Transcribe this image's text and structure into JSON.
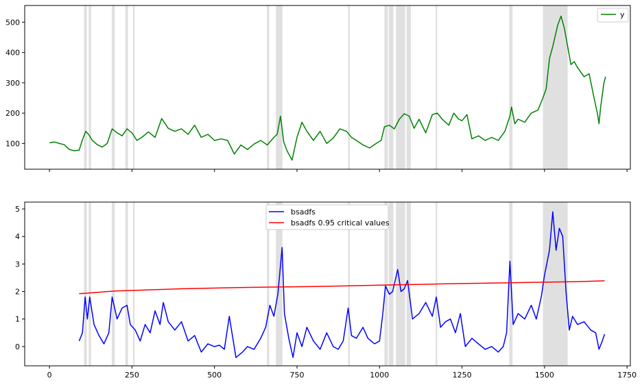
{
  "chart_data": [
    {
      "type": "line",
      "title": "",
      "xlabel": "",
      "ylabel": "",
      "xlim": [
        -75,
        1760
      ],
      "ylim": [
        15,
        555
      ],
      "x_ticks": [
        0,
        250,
        500,
        750,
        1000,
        1250,
        1500,
        1750
      ],
      "y_ticks": [
        100,
        200,
        300,
        400,
        500
      ],
      "show_x_tick_labels": false,
      "grid": false,
      "legend_position": "upper right",
      "shaded_regions": [
        [
          105,
          113
        ],
        [
          119,
          126
        ],
        [
          189,
          198
        ],
        [
          230,
          238
        ],
        [
          253,
          258
        ],
        [
          659,
          666
        ],
        [
          686,
          706
        ],
        [
          905,
          910
        ],
        [
          1015,
          1025
        ],
        [
          1028,
          1042
        ],
        [
          1050,
          1078
        ],
        [
          1082,
          1095
        ],
        [
          1170,
          1175
        ],
        [
          1393,
          1403
        ],
        [
          1495,
          1570
        ]
      ],
      "shade_color": "#e0e0e0",
      "series": [
        {
          "name": "y",
          "color": "#008000",
          "points": [
            [
              0,
              102
            ],
            [
              15,
              105
            ],
            [
              30,
              100
            ],
            [
              45,
              96
            ],
            [
              60,
              80
            ],
            [
              75,
              76
            ],
            [
              90,
              78
            ],
            [
              100,
              112
            ],
            [
              110,
              140
            ],
            [
              120,
              128
            ],
            [
              130,
              110
            ],
            [
              145,
              96
            ],
            [
              160,
              88
            ],
            [
              175,
              100
            ],
            [
              190,
              148
            ],
            [
              205,
              135
            ],
            [
              220,
              125
            ],
            [
              235,
              148
            ],
            [
              250,
              135
            ],
            [
              265,
              110
            ],
            [
              280,
              120
            ],
            [
              300,
              138
            ],
            [
              320,
              120
            ],
            [
              340,
              182
            ],
            [
              360,
              150
            ],
            [
              380,
              140
            ],
            [
              400,
              148
            ],
            [
              420,
              130
            ],
            [
              440,
              160
            ],
            [
              460,
              120
            ],
            [
              480,
              130
            ],
            [
              500,
              110
            ],
            [
              520,
              115
            ],
            [
              540,
              110
            ],
            [
              560,
              65
            ],
            [
              580,
              95
            ],
            [
              600,
              80
            ],
            [
              620,
              98
            ],
            [
              640,
              110
            ],
            [
              660,
              95
            ],
            [
              680,
              120
            ],
            [
              690,
              130
            ],
            [
              700,
              190
            ],
            [
              710,
              105
            ],
            [
              720,
              75
            ],
            [
              735,
              45
            ],
            [
              750,
              120
            ],
            [
              765,
              170
            ],
            [
              780,
              140
            ],
            [
              800,
              110
            ],
            [
              820,
              140
            ],
            [
              840,
              100
            ],
            [
              860,
              118
            ],
            [
              880,
              148
            ],
            [
              900,
              140
            ],
            [
              915,
              120
            ],
            [
              930,
              110
            ],
            [
              950,
              95
            ],
            [
              970,
              85
            ],
            [
              990,
              100
            ],
            [
              1005,
              110
            ],
            [
              1015,
              155
            ],
            [
              1030,
              160
            ],
            [
              1045,
              148
            ],
            [
              1060,
              180
            ],
            [
              1075,
              198
            ],
            [
              1090,
              190
            ],
            [
              1105,
              150
            ],
            [
              1120,
              180
            ],
            [
              1140,
              135
            ],
            [
              1160,
              195
            ],
            [
              1175,
              200
            ],
            [
              1190,
              180
            ],
            [
              1210,
              160
            ],
            [
              1225,
              200
            ],
            [
              1240,
              180
            ],
            [
              1250,
              175
            ],
            [
              1265,
              195
            ],
            [
              1280,
              115
            ],
            [
              1300,
              125
            ],
            [
              1320,
              110
            ],
            [
              1340,
              120
            ],
            [
              1360,
              110
            ],
            [
              1380,
              140
            ],
            [
              1395,
              190
            ],
            [
              1400,
              220
            ],
            [
              1410,
              165
            ],
            [
              1420,
              180
            ],
            [
              1440,
              170
            ],
            [
              1460,
              200
            ],
            [
              1480,
              210
            ],
            [
              1495,
              250
            ],
            [
              1505,
              280
            ],
            [
              1515,
              380
            ],
            [
              1525,
              420
            ],
            [
              1540,
              490
            ],
            [
              1550,
              520
            ],
            [
              1560,
              480
            ],
            [
              1570,
              420
            ],
            [
              1580,
              360
            ],
            [
              1590,
              370
            ],
            [
              1600,
              350
            ],
            [
              1620,
              320
            ],
            [
              1635,
              330
            ],
            [
              1650,
              250
            ],
            [
              1660,
              200
            ],
            [
              1665,
              165
            ],
            [
              1670,
              220
            ],
            [
              1680,
              300
            ],
            [
              1685,
              320
            ]
          ]
        }
      ]
    },
    {
      "type": "line",
      "title": "",
      "xlabel": "",
      "ylabel": "",
      "xlim": [
        -75,
        1760
      ],
      "ylim": [
        -0.7,
        5.25
      ],
      "x_ticks": [
        0,
        250,
        500,
        750,
        1000,
        1250,
        1500,
        1750
      ],
      "y_ticks": [
        0,
        1,
        2,
        3,
        4,
        5
      ],
      "show_x_tick_labels": true,
      "grid": false,
      "legend_position": "upper center",
      "shaded_regions": [
        [
          105,
          113
        ],
        [
          119,
          126
        ],
        [
          189,
          198
        ],
        [
          230,
          238
        ],
        [
          253,
          258
        ],
        [
          659,
          666
        ],
        [
          686,
          706
        ],
        [
          905,
          910
        ],
        [
          1015,
          1025
        ],
        [
          1028,
          1042
        ],
        [
          1050,
          1078
        ],
        [
          1082,
          1095
        ],
        [
          1170,
          1175
        ],
        [
          1393,
          1403
        ],
        [
          1495,
          1570
        ]
      ],
      "shade_color": "#e0e0e0",
      "series": [
        {
          "name": "bsadfs",
          "color": "#0000ff",
          "points": [
            [
              90,
              0.2
            ],
            [
              100,
              0.5
            ],
            [
              108,
              1.8
            ],
            [
              115,
              1.0
            ],
            [
              122,
              1.8
            ],
            [
              135,
              0.8
            ],
            [
              150,
              0.4
            ],
            [
              165,
              0.1
            ],
            [
              180,
              0.5
            ],
            [
              190,
              1.8
            ],
            [
              205,
              1.0
            ],
            [
              220,
              1.4
            ],
            [
              235,
              1.5
            ],
            [
              245,
              0.8
            ],
            [
              260,
              0.6
            ],
            [
              275,
              0.2
            ],
            [
              290,
              0.8
            ],
            [
              305,
              0.5
            ],
            [
              320,
              1.3
            ],
            [
              335,
              0.8
            ],
            [
              345,
              1.6
            ],
            [
              360,
              0.9
            ],
            [
              380,
              0.6
            ],
            [
              400,
              0.9
            ],
            [
              420,
              0.2
            ],
            [
              440,
              0.4
            ],
            [
              460,
              -0.2
            ],
            [
              480,
              0.1
            ],
            [
              500,
              0.0
            ],
            [
              515,
              0.05
            ],
            [
              530,
              -0.1
            ],
            [
              545,
              1.1
            ],
            [
              565,
              -0.4
            ],
            [
              585,
              -0.2
            ],
            [
              600,
              0.0
            ],
            [
              620,
              -0.1
            ],
            [
              640,
              0.3
            ],
            [
              655,
              0.7
            ],
            [
              668,
              1.5
            ],
            [
              680,
              1.1
            ],
            [
              692,
              1.9
            ],
            [
              705,
              3.6
            ],
            [
              712,
              1.2
            ],
            [
              725,
              0.3
            ],
            [
              738,
              -0.4
            ],
            [
              750,
              0.5
            ],
            [
              765,
              0.0
            ],
            [
              780,
              0.7
            ],
            [
              800,
              0.2
            ],
            [
              820,
              -0.1
            ],
            [
              840,
              0.5
            ],
            [
              860,
              0.0
            ],
            [
              875,
              -0.1
            ],
            [
              890,
              0.2
            ],
            [
              905,
              1.4
            ],
            [
              915,
              0.4
            ],
            [
              930,
              0.3
            ],
            [
              950,
              0.7
            ],
            [
              965,
              0.3
            ],
            [
              985,
              0.1
            ],
            [
              1000,
              0.2
            ],
            [
              1010,
              1.2
            ],
            [
              1018,
              2.2
            ],
            [
              1030,
              1.9
            ],
            [
              1040,
              2.0
            ],
            [
              1055,
              2.8
            ],
            [
              1065,
              2.0
            ],
            [
              1075,
              2.1
            ],
            [
              1085,
              2.4
            ],
            [
              1100,
              1.0
            ],
            [
              1120,
              1.2
            ],
            [
              1140,
              1.6
            ],
            [
              1160,
              1.1
            ],
            [
              1172,
              1.8
            ],
            [
              1185,
              0.7
            ],
            [
              1200,
              0.9
            ],
            [
              1215,
              1.0
            ],
            [
              1230,
              0.5
            ],
            [
              1245,
              1.2
            ],
            [
              1260,
              0.0
            ],
            [
              1280,
              0.3
            ],
            [
              1300,
              0.1
            ],
            [
              1320,
              -0.1
            ],
            [
              1340,
              0.0
            ],
            [
              1360,
              -0.2
            ],
            [
              1375,
              0.0
            ],
            [
              1385,
              0.5
            ],
            [
              1395,
              3.1
            ],
            [
              1405,
              0.8
            ],
            [
              1420,
              1.2
            ],
            [
              1440,
              1.0
            ],
            [
              1460,
              1.5
            ],
            [
              1475,
              1.0
            ],
            [
              1490,
              1.8
            ],
            [
              1500,
              2.6
            ],
            [
              1515,
              3.5
            ],
            [
              1525,
              4.9
            ],
            [
              1535,
              3.5
            ],
            [
              1545,
              4.3
            ],
            [
              1555,
              4.0
            ],
            [
              1565,
              2.0
            ],
            [
              1575,
              0.6
            ],
            [
              1585,
              1.1
            ],
            [
              1600,
              0.8
            ],
            [
              1620,
              0.9
            ],
            [
              1640,
              0.6
            ],
            [
              1655,
              0.5
            ],
            [
              1665,
              -0.1
            ],
            [
              1675,
              0.2
            ],
            [
              1682,
              0.45
            ]
          ]
        },
        {
          "name": "bsadfs 0.95 critical values",
          "color": "#ff0000",
          "points": [
            [
              90,
              1.92
            ],
            [
              200,
              2.02
            ],
            [
              400,
              2.1
            ],
            [
              600,
              2.15
            ],
            [
              800,
              2.18
            ],
            [
              1000,
              2.23
            ],
            [
              1200,
              2.28
            ],
            [
              1400,
              2.32
            ],
            [
              1600,
              2.36
            ],
            [
              1682,
              2.39
            ]
          ]
        }
      ]
    }
  ]
}
